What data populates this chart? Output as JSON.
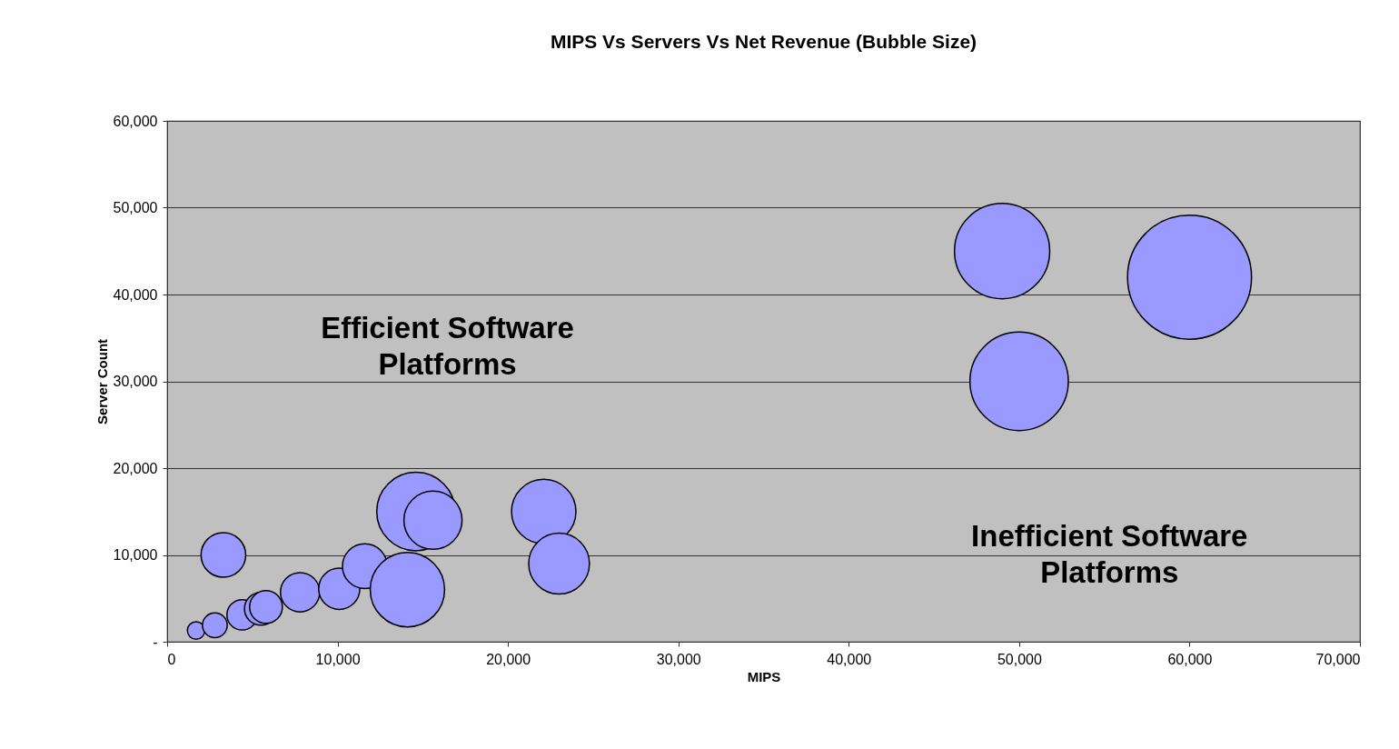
{
  "chart_data": {
    "type": "bubble",
    "title": "MIPS Vs Servers Vs Net Revenue (Bubble Size)",
    "xlabel": "MIPS",
    "ylabel": "Server Count",
    "x": [
      1700,
      2800,
      4400,
      5500,
      5800,
      7800,
      10100,
      11600,
      14600,
      15600,
      14100,
      22100,
      23000,
      3300,
      49000,
      50000,
      60000
    ],
    "values": [
      1300,
      1900,
      3100,
      3800,
      4000,
      5700,
      6100,
      8700,
      15000,
      14000,
      6000,
      15000,
      9000,
      10000,
      45000,
      30000,
      42000
    ],
    "sizes": [
      0.02,
      0.04,
      0.06,
      0.07,
      0.07,
      0.1,
      0.11,
      0.13,
      0.4,
      0.22,
      0.36,
      0.27,
      0.24,
      0.13,
      0.59,
      0.63,
      1
    ],
    "color": "#9999ff",
    "marker": "circle",
    "xlim": [
      0,
      70000
    ],
    "xticks": [
      0,
      {
        "value": 10000,
        "label": "10,000"
      },
      {
        "value": 20000,
        "label": "20,000"
      },
      {
        "value": 30000,
        "label": "30,000"
      },
      {
        "value": 40000,
        "label": "40,000"
      },
      {
        "value": 50000,
        "label": "50,000"
      },
      {
        "value": 60000,
        "label": "60,000"
      },
      {
        "value": 70000,
        "label": "70,000"
      }
    ],
    "ylim": [
      0,
      60000
    ],
    "yticks": [
      {
        "value": 0,
        "label": "-"
      },
      {
        "value": 10000,
        "label": "10,000"
      },
      {
        "value": 20000,
        "label": "20,000"
      },
      {
        "value": 30000,
        "label": "30,000"
      },
      {
        "value": 40000,
        "label": "40,000"
      },
      {
        "value": 50000,
        "label": "50,000"
      },
      {
        "value": 60000,
        "label": "60,000"
      }
    ],
    "grid": "y",
    "annotations": [
      "Efficient Software Platforms",
      "Inefficient Software Platforms"
    ]
  }
}
